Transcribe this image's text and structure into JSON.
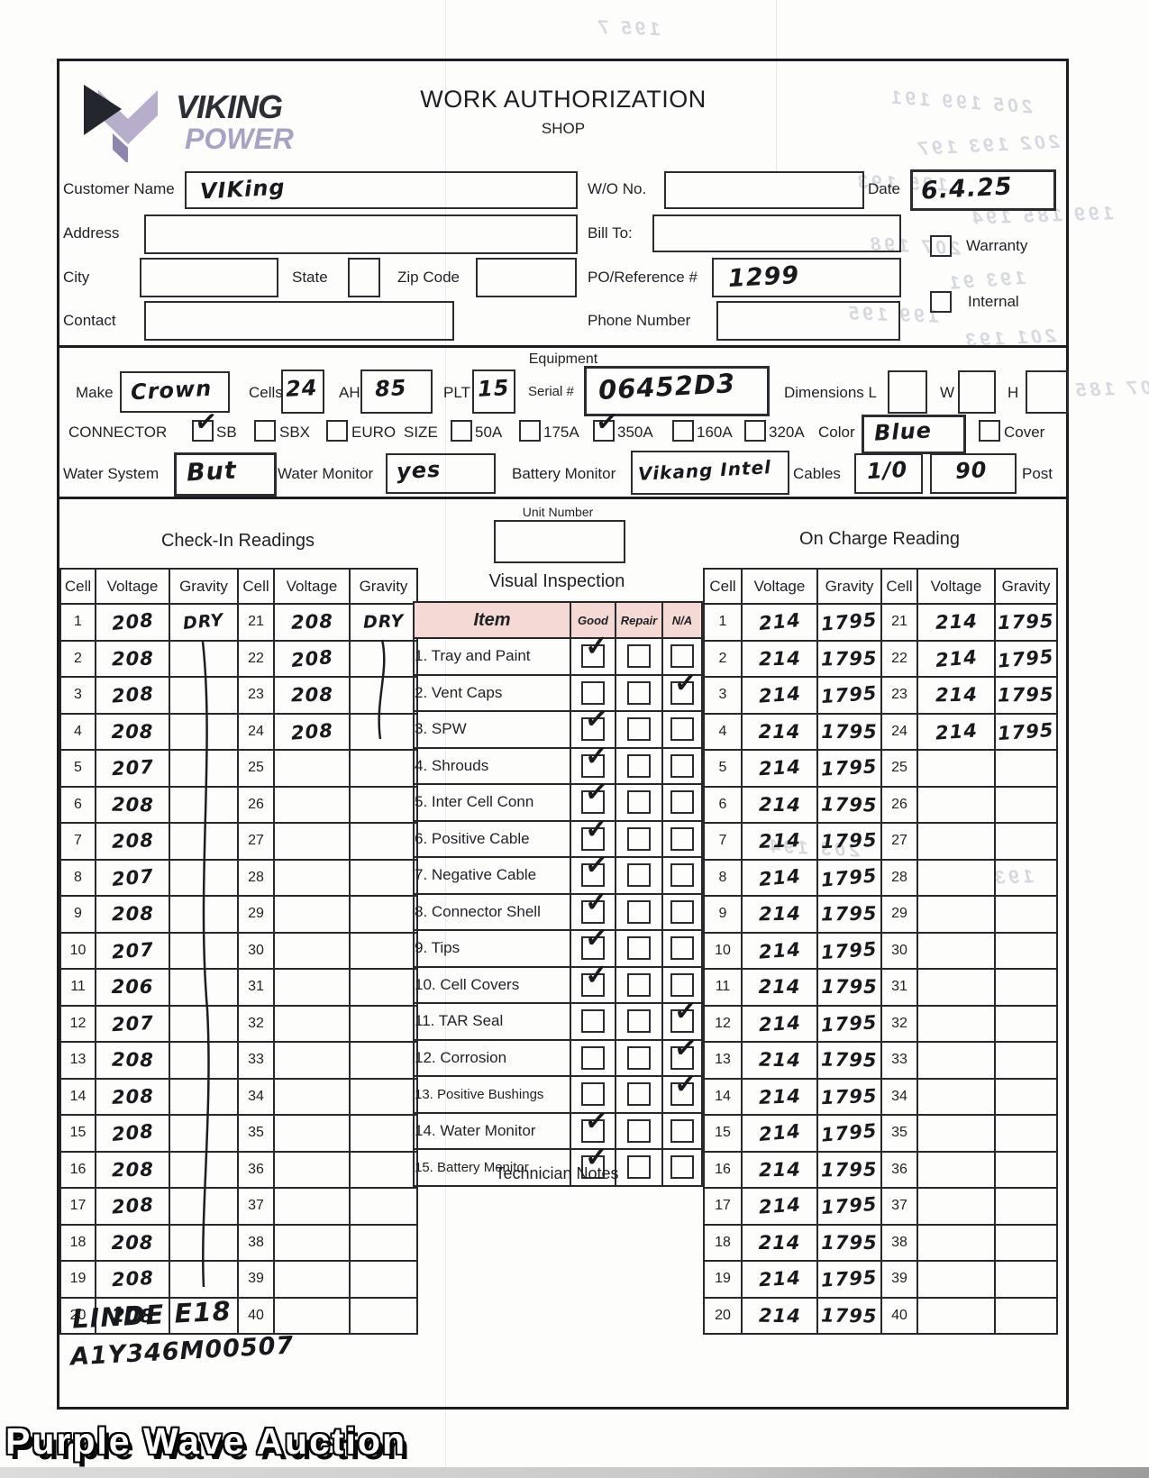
{
  "header": {
    "logo_word1": "VIKING",
    "logo_word2": "POWER",
    "title": "WORK AUTHORIZATION",
    "subtitle": "SHOP"
  },
  "customer_info": {
    "customer_name": {
      "label": "Customer Name",
      "value": "VIKing"
    },
    "address": {
      "label": "Address",
      "value": ""
    },
    "city": {
      "label": "City",
      "value": ""
    },
    "state": {
      "label": "State",
      "value": ""
    },
    "zip": {
      "label": "Zip Code",
      "value": ""
    },
    "contact": {
      "label": "Contact",
      "value": ""
    },
    "wo_no": {
      "label": "W/O No.",
      "value": ""
    },
    "date": {
      "label": "Date",
      "value": "6.4.25"
    },
    "bill_to": {
      "label": "Bill To:",
      "value": ""
    },
    "po_ref": {
      "label": "PO/Reference #",
      "value": "1299"
    },
    "phone": {
      "label": "Phone Number",
      "value": ""
    },
    "warranty": {
      "label": "Warranty",
      "checked": false
    },
    "internal": {
      "label": "Internal",
      "checked": false
    }
  },
  "equipment": {
    "section_title": "Equipment",
    "make": {
      "label": "Make",
      "value": "Crown"
    },
    "cells": {
      "label": "Cells",
      "value": "24"
    },
    "ah": {
      "label": "AH",
      "value": "85"
    },
    "plt": {
      "label": "PLT",
      "value": "15"
    },
    "serial": {
      "label": "Serial #",
      "value": "06452D3"
    },
    "dimensions": {
      "label": "Dimensions L",
      "w_label": "W",
      "h_label": "H",
      "l": "",
      "w": "",
      "h": ""
    },
    "connector": {
      "label": "CONNECTOR",
      "options": [
        {
          "label": "SB",
          "checked": true
        },
        {
          "label": "SBX",
          "checked": false
        },
        {
          "label": "EURO",
          "checked": false
        }
      ]
    },
    "size": {
      "label": "SIZE",
      "options": [
        {
          "label": "50A",
          "checked": false
        },
        {
          "label": "175A",
          "checked": false
        },
        {
          "label": "350A",
          "checked": true
        },
        {
          "label": "160A",
          "checked": false
        },
        {
          "label": "320A",
          "checked": false
        }
      ]
    },
    "color": {
      "label": "Color",
      "value": "Blue"
    },
    "cover": {
      "label": "Cover",
      "checked": false
    },
    "water_system": {
      "label": "Water System",
      "value": "But"
    },
    "water_monitor": {
      "label": "Water Monitor",
      "value": "yes"
    },
    "battery_monitor": {
      "label": "Battery Monitor",
      "value": "Vikang Intel"
    },
    "cables": {
      "label": "Cables",
      "value1": "1/0",
      "value2": "90",
      "post_label": "Post"
    }
  },
  "unit_number": {
    "label": "Unit Number",
    "value": ""
  },
  "readings_columns": [
    "Cell",
    "Voltage",
    "Gravity"
  ],
  "check_in": {
    "title": "Check-In Readings",
    "left_rows": [
      {
        "cell": "1",
        "voltage": "208",
        "gravity": "DRY"
      },
      {
        "cell": "2",
        "voltage": "208",
        "gravity": ""
      },
      {
        "cell": "3",
        "voltage": "208",
        "gravity": ""
      },
      {
        "cell": "4",
        "voltage": "208",
        "gravity": ""
      },
      {
        "cell": "5",
        "voltage": "207",
        "gravity": ""
      },
      {
        "cell": "6",
        "voltage": "208",
        "gravity": ""
      },
      {
        "cell": "7",
        "voltage": "208",
        "gravity": ""
      },
      {
        "cell": "8",
        "voltage": "207",
        "gravity": ""
      },
      {
        "cell": "9",
        "voltage": "208",
        "gravity": ""
      },
      {
        "cell": "10",
        "voltage": "207",
        "gravity": ""
      },
      {
        "cell": "11",
        "voltage": "206",
        "gravity": ""
      },
      {
        "cell": "12",
        "voltage": "207",
        "gravity": ""
      },
      {
        "cell": "13",
        "voltage": "208",
        "gravity": ""
      },
      {
        "cell": "14",
        "voltage": "208",
        "gravity": ""
      },
      {
        "cell": "15",
        "voltage": "208",
        "gravity": ""
      },
      {
        "cell": "16",
        "voltage": "208",
        "gravity": ""
      },
      {
        "cell": "17",
        "voltage": "208",
        "gravity": ""
      },
      {
        "cell": "18",
        "voltage": "208",
        "gravity": ""
      },
      {
        "cell": "19",
        "voltage": "208",
        "gravity": ""
      },
      {
        "cell": "20",
        "voltage": "208",
        "gravity": ""
      }
    ],
    "right_rows": [
      {
        "cell": "21",
        "voltage": "208",
        "gravity": "DRY"
      },
      {
        "cell": "22",
        "voltage": "208",
        "gravity": ""
      },
      {
        "cell": "23",
        "voltage": "208",
        "gravity": ""
      },
      {
        "cell": "24",
        "voltage": "208",
        "gravity": ""
      },
      {
        "cell": "25",
        "voltage": "",
        "gravity": ""
      },
      {
        "cell": "26",
        "voltage": "",
        "gravity": ""
      },
      {
        "cell": "27",
        "voltage": "",
        "gravity": ""
      },
      {
        "cell": "28",
        "voltage": "",
        "gravity": ""
      },
      {
        "cell": "29",
        "voltage": "",
        "gravity": ""
      },
      {
        "cell": "30",
        "voltage": "",
        "gravity": ""
      },
      {
        "cell": "31",
        "voltage": "",
        "gravity": ""
      },
      {
        "cell": "32",
        "voltage": "",
        "gravity": ""
      },
      {
        "cell": "33",
        "voltage": "",
        "gravity": ""
      },
      {
        "cell": "34",
        "voltage": "",
        "gravity": ""
      },
      {
        "cell": "35",
        "voltage": "",
        "gravity": ""
      },
      {
        "cell": "36",
        "voltage": "",
        "gravity": ""
      },
      {
        "cell": "37",
        "voltage": "",
        "gravity": ""
      },
      {
        "cell": "38",
        "voltage": "",
        "gravity": ""
      },
      {
        "cell": "39",
        "voltage": "",
        "gravity": ""
      },
      {
        "cell": "40",
        "voltage": "",
        "gravity": ""
      }
    ]
  },
  "on_charge": {
    "title": "On Charge Reading",
    "left_rows": [
      {
        "cell": "1",
        "voltage": "214",
        "gravity": "1795"
      },
      {
        "cell": "2",
        "voltage": "214",
        "gravity": "1795"
      },
      {
        "cell": "3",
        "voltage": "214",
        "gravity": "1795"
      },
      {
        "cell": "4",
        "voltage": "214",
        "gravity": "1795"
      },
      {
        "cell": "5",
        "voltage": "214",
        "gravity": "1795"
      },
      {
        "cell": "6",
        "voltage": "214",
        "gravity": "1795"
      },
      {
        "cell": "7",
        "voltage": "214",
        "gravity": "1795"
      },
      {
        "cell": "8",
        "voltage": "214",
        "gravity": "1795"
      },
      {
        "cell": "9",
        "voltage": "214",
        "gravity": "1795"
      },
      {
        "cell": "10",
        "voltage": "214",
        "gravity": "1795"
      },
      {
        "cell": "11",
        "voltage": "214",
        "gravity": "1795"
      },
      {
        "cell": "12",
        "voltage": "214",
        "gravity": "1795"
      },
      {
        "cell": "13",
        "voltage": "214",
        "gravity": "1795"
      },
      {
        "cell": "14",
        "voltage": "214",
        "gravity": "1795"
      },
      {
        "cell": "15",
        "voltage": "214",
        "gravity": "1795"
      },
      {
        "cell": "16",
        "voltage": "214",
        "gravity": "1795"
      },
      {
        "cell": "17",
        "voltage": "214",
        "gravity": "1795"
      },
      {
        "cell": "18",
        "voltage": "214",
        "gravity": "1795"
      },
      {
        "cell": "19",
        "voltage": "214",
        "gravity": "1795"
      },
      {
        "cell": "20",
        "voltage": "214",
        "gravity": "1795"
      }
    ],
    "right_rows": [
      {
        "cell": "21",
        "voltage": "214",
        "gravity": "1795"
      },
      {
        "cell": "22",
        "voltage": "214",
        "gravity": "1795"
      },
      {
        "cell": "23",
        "voltage": "214",
        "gravity": "1795"
      },
      {
        "cell": "24",
        "voltage": "214",
        "gravity": "1795"
      },
      {
        "cell": "25",
        "voltage": "",
        "gravity": ""
      },
      {
        "cell": "26",
        "voltage": "",
        "gravity": ""
      },
      {
        "cell": "27",
        "voltage": "",
        "gravity": ""
      },
      {
        "cell": "28",
        "voltage": "",
        "gravity": ""
      },
      {
        "cell": "29",
        "voltage": "",
        "gravity": ""
      },
      {
        "cell": "30",
        "voltage": "",
        "gravity": ""
      },
      {
        "cell": "31",
        "voltage": "",
        "gravity": ""
      },
      {
        "cell": "32",
        "voltage": "",
        "gravity": ""
      },
      {
        "cell": "33",
        "voltage": "",
        "gravity": ""
      },
      {
        "cell": "34",
        "voltage": "",
        "gravity": ""
      },
      {
        "cell": "35",
        "voltage": "",
        "gravity": ""
      },
      {
        "cell": "36",
        "voltage": "",
        "gravity": ""
      },
      {
        "cell": "37",
        "voltage": "",
        "gravity": ""
      },
      {
        "cell": "38",
        "voltage": "",
        "gravity": ""
      },
      {
        "cell": "39",
        "voltage": "",
        "gravity": ""
      },
      {
        "cell": "40",
        "voltage": "",
        "gravity": ""
      }
    ]
  },
  "visual_inspection": {
    "title": "Visual Inspection",
    "columns": [
      "Item",
      "Good",
      "Repair",
      "N/A"
    ],
    "items": [
      {
        "label": "1. Tray and Paint",
        "good": true,
        "repair": false,
        "na": false
      },
      {
        "label": "2. Vent Caps",
        "good": false,
        "repair": false,
        "na": true
      },
      {
        "label": "3. SPW",
        "good": true,
        "repair": false,
        "na": false
      },
      {
        "label": "4. Shrouds",
        "good": true,
        "repair": false,
        "na": false
      },
      {
        "label": "5. Inter Cell Conn",
        "good": true,
        "repair": false,
        "na": false
      },
      {
        "label": "6. Positive Cable",
        "good": true,
        "repair": false,
        "na": false
      },
      {
        "label": "7. Negative Cable",
        "good": true,
        "repair": false,
        "na": false
      },
      {
        "label": "8. Connector Shell",
        "good": true,
        "repair": false,
        "na": false
      },
      {
        "label": "9. Tips",
        "good": true,
        "repair": false,
        "na": false
      },
      {
        "label": "10. Cell Covers",
        "good": true,
        "repair": false,
        "na": false
      },
      {
        "label": "11. TAR Seal",
        "good": false,
        "repair": false,
        "na": true
      },
      {
        "label": "12. Corrosion",
        "good": false,
        "repair": false,
        "na": true
      },
      {
        "label": "13. Positive Bushings",
        "good": false,
        "repair": false,
        "na": true
      },
      {
        "label": "14. Water Monitor",
        "good": true,
        "repair": false,
        "na": false
      },
      {
        "label": "15. Battery Monitor",
        "good": true,
        "repair": false,
        "na": false
      }
    ],
    "notes_title": "Technician Notes"
  },
  "handwritten_notes": {
    "line1": "LINDE E18",
    "line2": "A1Y346M00507"
  },
  "watermark": "Purple Wave Auction",
  "artifacts": {
    "ghost_numbers": [
      "205 199 191",
      "202 193 197",
      "195 193",
      "199 185 194",
      "207 198",
      "193 91",
      "199 195",
      "201 193",
      "207 185",
      "195 7",
      "203 194",
      "193"
    ]
  }
}
